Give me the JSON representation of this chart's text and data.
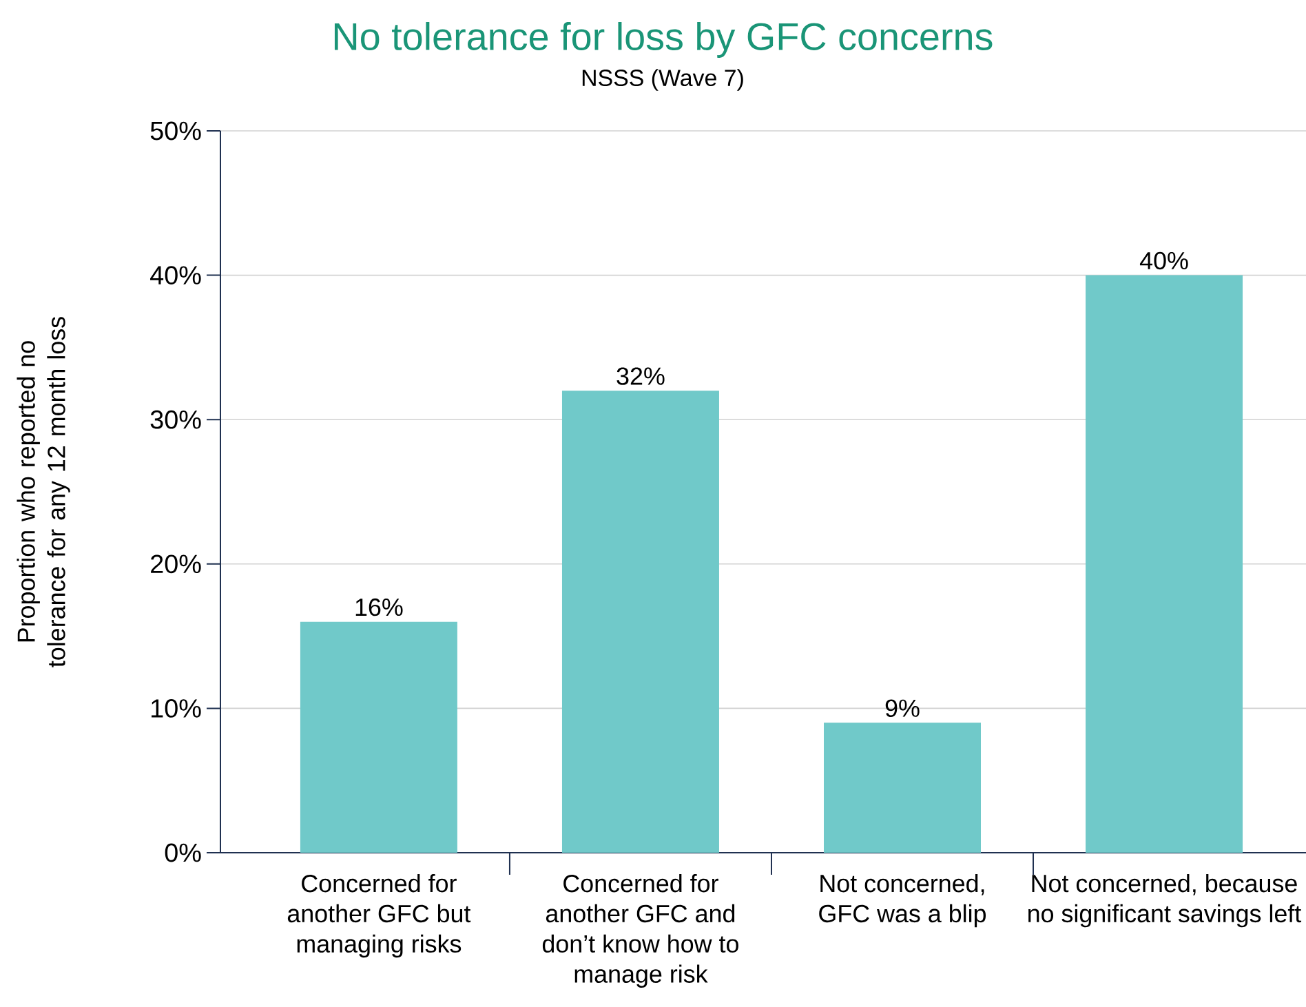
{
  "chart_data": {
    "type": "bar",
    "title": "No tolerance for loss by GFC concerns",
    "subtitle": "NSSS (Wave 7)",
    "ylabel": "Proportion who reported no tolerance for any 12 month loss",
    "categories": [
      "Concerned for another GFC but managing risks",
      "Concerned for another GFC and don’t know how to manage risk",
      "Not concerned, GFC was a blip",
      "Not concerned, because no significant savings left"
    ],
    "values": [
      16,
      32,
      9,
      40
    ],
    "value_labels": [
      "16%",
      "32%",
      "9%",
      "40%"
    ],
    "color": "#70c9c9",
    "ylim": [
      0,
      50
    ],
    "yticks": [
      {
        "value": 0,
        "label": "0%"
      },
      {
        "value": 10,
        "label": "10%"
      },
      {
        "value": 20,
        "label": "20%"
      },
      {
        "value": 30,
        "label": "30%"
      },
      {
        "value": 40,
        "label": "40%"
      },
      {
        "value": 50,
        "label": "50%"
      }
    ],
    "grid": "y"
  }
}
